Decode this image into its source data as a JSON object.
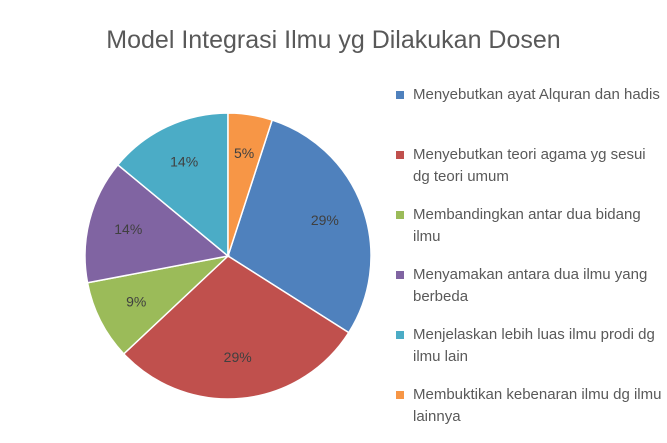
{
  "chart_data": {
    "type": "pie",
    "title": "Model Integrasi Ilmu yg Dilakukan Dosen",
    "categories": [
      "Menyebutkan ayat Alquran dan hadis",
      "Menyebutkan teori agama yg sesui dg teori umum",
      "Membandingkan antar dua bidang ilmu",
      "Menyamakan antara dua ilmu yang berbeda",
      "Menjelaskan lebih luas ilmu prodi dg ilmu lain",
      "Membuktikan kebenaran ilmu dg ilmu lainnya"
    ],
    "values": [
      29,
      29,
      9,
      14,
      14,
      5
    ],
    "value_labels": [
      "29%",
      "29%",
      "9%",
      "14%",
      "14%",
      "5%"
    ],
    "colors": [
      "#4f81bd",
      "#c0504d",
      "#9bbb59",
      "#8064a2",
      "#4bacc6",
      "#f79646"
    ],
    "legend": "right"
  }
}
